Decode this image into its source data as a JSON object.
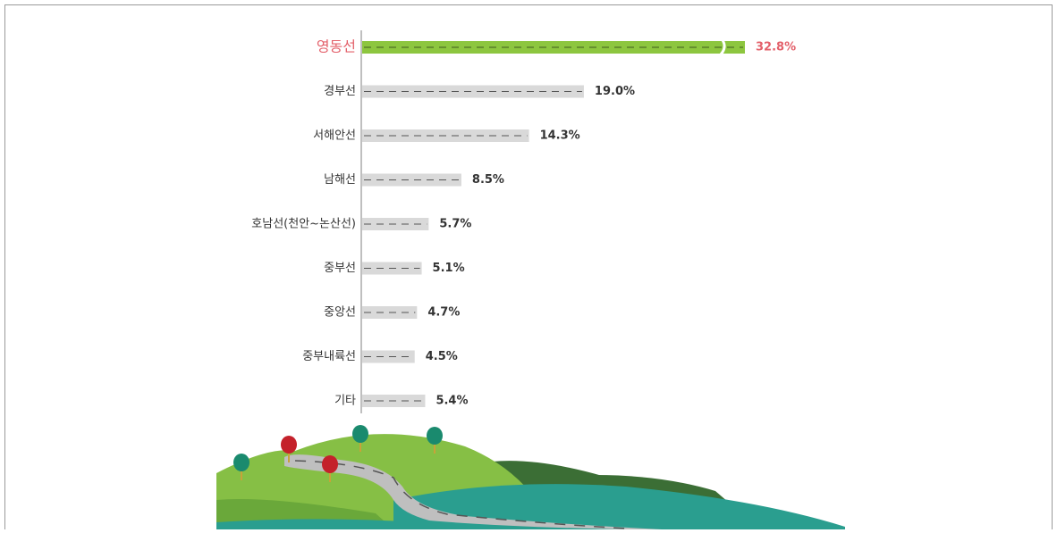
{
  "chart_data": {
    "type": "hbar",
    "categories": [
      "영동선",
      "경부선",
      "서해안선",
      "남해선",
      "호남선(천안~논산선)",
      "중부선",
      "중앙선",
      "중부내륙선",
      "기타"
    ],
    "values": [
      32.8,
      19.0,
      14.3,
      8.5,
      5.7,
      5.1,
      4.7,
      4.5,
      5.4
    ],
    "value_labels": [
      "32.8%",
      "19.0%",
      "14.3%",
      "8.5%",
      "5.7%",
      "5.1%",
      "4.7%",
      "4.5%",
      "5.4%"
    ],
    "colors": [
      "#8dc63f",
      "#d9d9d9",
      "#d9d9d9",
      "#d9d9d9",
      "#d9d9d9",
      "#d9d9d9",
      "#d9d9d9",
      "#d9d9d9",
      "#d9d9d9"
    ],
    "label_colors": [
      "#e3606a",
      "#333333",
      "#333333",
      "#333333",
      "#333333",
      "#333333",
      "#333333",
      "#333333",
      "#333333"
    ]
  }
}
